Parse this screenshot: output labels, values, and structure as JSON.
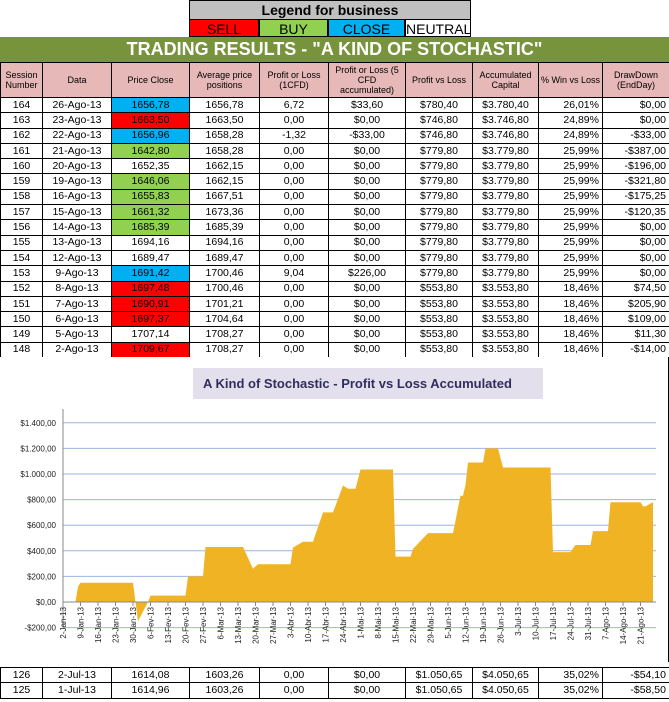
{
  "legend": {
    "title": "Legend for business",
    "items": [
      {
        "label": "SELL",
        "color": "#ff0000"
      },
      {
        "label": "BUY",
        "color": "#92d050"
      },
      {
        "label": "CLOSE",
        "color": "#00b0f0"
      },
      {
        "label": "NEUTRAL",
        "color": "#ffffff"
      }
    ]
  },
  "title": "TRADING RESULTS - \"A KIND OF STOCHASTIC\"",
  "columns": [
    "Session Number",
    "Data",
    "Price Close",
    "Average price positions",
    "Profit or Loss (1CFD)",
    "Profit or Loss (5 CFD accumulated)",
    "Profit vs Loss",
    "Accumulated Capital",
    "% Win vs Loss",
    "DrawDown (EndDay)"
  ],
  "rows": [
    {
      "cells": [
        "164",
        "26-Ago-13",
        "1656,78",
        "1656,78",
        "6,72",
        "$33,60",
        "$780,40",
        "$3.780,40",
        "26,01%",
        "$0,00"
      ],
      "signal": "CLOSE"
    },
    {
      "cells": [
        "163",
        "23-Ago-13",
        "1663,50",
        "1663,50",
        "0,00",
        "$0,00",
        "$746,80",
        "$3.746,80",
        "24,89%",
        "$0,00"
      ],
      "signal": "SELL"
    },
    {
      "cells": [
        "162",
        "22-Ago-13",
        "1656,96",
        "1658,28",
        "-1,32",
        "-$33,00",
        "$746,80",
        "$3.746,80",
        "24,89%",
        "-$33,00"
      ],
      "signal": "CLOSE"
    },
    {
      "cells": [
        "161",
        "21-Ago-13",
        "1642,80",
        "1658,28",
        "0,00",
        "$0,00",
        "$779,80",
        "$3.779,80",
        "25,99%",
        "-$387,00"
      ],
      "signal": "BUY"
    },
    {
      "cells": [
        "160",
        "20-Ago-13",
        "1652,35",
        "1662,15",
        "0,00",
        "$0,00",
        "$779,80",
        "$3.779,80",
        "25,99%",
        "-$196,00"
      ],
      "signal": "NEUTRAL"
    },
    {
      "cells": [
        "159",
        "19-Ago-13",
        "1646,06",
        "1662,15",
        "0,00",
        "$0,00",
        "$779,80",
        "$3.779,80",
        "25,99%",
        "-$321,80"
      ],
      "signal": "BUY"
    },
    {
      "cells": [
        "158",
        "16-Ago-13",
        "1655,83",
        "1667,51",
        "0,00",
        "$0,00",
        "$779,80",
        "$3.779,80",
        "25,99%",
        "-$175,25"
      ],
      "signal": "BUY"
    },
    {
      "cells": [
        "157",
        "15-Ago-13",
        "1661,32",
        "1673,36",
        "0,00",
        "$0,00",
        "$779,80",
        "$3.779,80",
        "25,99%",
        "-$120,35"
      ],
      "signal": "BUY"
    },
    {
      "cells": [
        "156",
        "14-Ago-13",
        "1685,39",
        "1685,39",
        "0,00",
        "$0,00",
        "$779,80",
        "$3.779,80",
        "25,99%",
        "$0,00"
      ],
      "signal": "BUY"
    },
    {
      "cells": [
        "155",
        "13-Ago-13",
        "1694,16",
        "1694,16",
        "0,00",
        "$0,00",
        "$779,80",
        "$3.779,80",
        "25,99%",
        "$0,00"
      ],
      "signal": "NEUTRAL"
    },
    {
      "cells": [
        "154",
        "12-Ago-13",
        "1689,47",
        "1689,47",
        "0,00",
        "$0,00",
        "$779,80",
        "$3.779,80",
        "25,99%",
        "$0,00"
      ],
      "signal": "NEUTRAL"
    },
    {
      "cells": [
        "153",
        "9-Ago-13",
        "1691,42",
        "1700,46",
        "9,04",
        "$226,00",
        "$779,80",
        "$3.779,80",
        "25,99%",
        "$0,00"
      ],
      "signal": "CLOSE"
    },
    {
      "cells": [
        "152",
        "8-Ago-13",
        "1697,48",
        "1700,46",
        "0,00",
        "$0,00",
        "$553,80",
        "$3.553,80",
        "18,46%",
        "$74,50"
      ],
      "signal": "SELL"
    },
    {
      "cells": [
        "151",
        "7-Ago-13",
        "1690,91",
        "1701,21",
        "0,00",
        "$0,00",
        "$553,80",
        "$3.553,80",
        "18,46%",
        "$205,90"
      ],
      "signal": "SELL"
    },
    {
      "cells": [
        "150",
        "6-Ago-13",
        "1697,37",
        "1704,64",
        "0,00",
        "$0,00",
        "$553,80",
        "$3.553,80",
        "18,46%",
        "$109,00"
      ],
      "signal": "SELL"
    },
    {
      "cells": [
        "149",
        "5-Ago-13",
        "1707,14",
        "1708,27",
        "0,00",
        "$0,00",
        "$553,80",
        "$3.553,80",
        "18,46%",
        "$11,30"
      ],
      "signal": "NEUTRAL"
    },
    {
      "cells": [
        "148",
        "2-Ago-13",
        "1709,67",
        "1708,27",
        "0,00",
        "$0,00",
        "$553,80",
        "$3.553,80",
        "18,46%",
        "-$14,00"
      ],
      "signal": "SELL"
    }
  ],
  "rows_bottom": [
    {
      "cells": [
        "126",
        "2-Jul-13",
        "1614,08",
        "1603,26",
        "0,00",
        "$0,00",
        "$1.050,65",
        "$4.050,65",
        "35,02%",
        "-$54,10"
      ],
      "signal": "NEUTRAL"
    },
    {
      "cells": [
        "125",
        "1-Jul-13",
        "1614,96",
        "1603,26",
        "0,00",
        "$0,00",
        "$1.050,65",
        "$4.050,65",
        "35,02%",
        "-$58,50"
      ],
      "signal": "NEUTRAL"
    }
  ],
  "chart_data": {
    "type": "area",
    "title": "A Kind of Stochastic - Profit vs Loss Accumulated",
    "xlabel": "",
    "ylabel": "",
    "ylim": [
      -200,
      1400
    ],
    "yticks": [
      "-$200,00",
      "$0,00",
      "$200,00",
      "$400,00",
      "$600,00",
      "$800,00",
      "$1.000,00",
      "$1.200,00",
      "$1.400,00"
    ],
    "xticks": [
      "2-Jan-13",
      "9-Jan-13",
      "16-Jan-13",
      "23-Jan-13",
      "30-Jan-13",
      "6-Fev-13",
      "13-Fev-13",
      "20-Fev-13",
      "27-Fev-13",
      "6-Mar-13",
      "13-Mar-13",
      "20-Mar-13",
      "27-Mar-13",
      "3-Abr-13",
      "10-Abr-13",
      "17-Abr-13",
      "24-Abr-13",
      "1-Mai-13",
      "8-Mai-13",
      "15-Mai-13",
      "22-Mai-13",
      "29-Mai-13",
      "5-Jun-13",
      "12-Jun-13",
      "19-Jun-13",
      "26-Jun-13",
      "3-Jul-13",
      "10-Jul-13",
      "17-Jul-13",
      "24-Jul-13",
      "31-Jul-13",
      "7-Ago-13",
      "14-Ago-13",
      "21-Ago-13"
    ],
    "grid": true,
    "color": "#f0b323",
    "points": [
      [
        "2013-01-07",
        0
      ],
      [
        "2013-01-08",
        120
      ],
      [
        "2013-01-09",
        150
      ],
      [
        "2013-01-30",
        150
      ],
      [
        "2013-02-01",
        -150
      ],
      [
        "2013-02-05",
        0
      ],
      [
        "2013-02-06",
        50
      ],
      [
        "2013-02-20",
        50
      ],
      [
        "2013-02-21",
        200
      ],
      [
        "2013-02-27",
        200
      ],
      [
        "2013-02-28",
        430
      ],
      [
        "2013-03-15",
        430
      ],
      [
        "2013-03-19",
        260
      ],
      [
        "2013-03-21",
        295
      ],
      [
        "2013-04-03",
        295
      ],
      [
        "2013-04-04",
        425
      ],
      [
        "2013-04-08",
        470
      ],
      [
        "2013-04-12",
        470
      ],
      [
        "2013-04-16",
        700
      ],
      [
        "2013-04-20",
        700
      ],
      [
        "2013-04-24",
        910
      ],
      [
        "2013-04-26",
        885
      ],
      [
        "2013-04-29",
        885
      ],
      [
        "2013-05-01",
        1035
      ],
      [
        "2013-05-14",
        1035
      ],
      [
        "2013-05-15",
        355
      ],
      [
        "2013-05-21",
        355
      ],
      [
        "2013-05-22",
        415
      ],
      [
        "2013-05-28",
        538
      ],
      [
        "2013-06-07",
        538
      ],
      [
        "2013-06-10",
        830
      ],
      [
        "2013-06-11",
        830
      ],
      [
        "2013-06-12",
        915
      ],
      [
        "2013-06-13",
        1090
      ],
      [
        "2013-06-19",
        1090
      ],
      [
        "2013-06-20",
        1200
      ],
      [
        "2013-06-25",
        1200
      ],
      [
        "2013-06-27",
        1050.65
      ],
      [
        "2013-07-16",
        1050.65
      ],
      [
        "2013-07-17",
        390
      ],
      [
        "2013-07-24",
        390
      ],
      [
        "2013-07-25",
        420
      ],
      [
        "2013-07-26",
        445
      ],
      [
        "2013-08-01",
        445
      ],
      [
        "2013-08-02",
        553.8
      ],
      [
        "2013-08-08",
        553.8
      ],
      [
        "2013-08-09",
        779.8
      ],
      [
        "2013-08-21",
        779.8
      ],
      [
        "2013-08-22",
        746.8
      ],
      [
        "2013-08-23",
        746.8
      ],
      [
        "2013-08-26",
        780.4
      ]
    ]
  }
}
